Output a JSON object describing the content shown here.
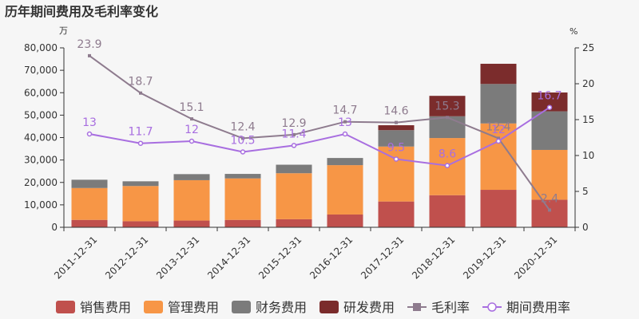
{
  "chart_data": {
    "type": "bar",
    "title": "历年期间费用及毛利率变化",
    "left_unit": "万",
    "right_unit": "%",
    "categories": [
      "2011-12-31",
      "2012-12-31",
      "2013-12-31",
      "2014-12-31",
      "2015-12-31",
      "2016-12-31",
      "2017-12-31",
      "2018-12-31",
      "2019-12-31",
      "2020-12-31"
    ],
    "ylim_left": [
      0,
      80000
    ],
    "ylim_right": [
      0,
      25
    ],
    "yticks_left": [
      "0",
      "10,000",
      "20,000",
      "30,000",
      "40,000",
      "50,000",
      "60,000",
      "70,000",
      "80,000"
    ],
    "yticks_right": [
      "0",
      "5",
      "10",
      "15",
      "20",
      "25"
    ],
    "grid": false,
    "legend_position": "bottom",
    "bar_series": [
      {
        "name": "销售费用",
        "color": "#c0504d",
        "values": [
          3300,
          2700,
          3000,
          3300,
          3600,
          5700,
          11500,
          14300,
          16700,
          12300
        ]
      },
      {
        "name": "管理费用",
        "color": "#f79646",
        "values": [
          14200,
          15700,
          18000,
          18500,
          20500,
          22000,
          24500,
          25500,
          29600,
          22200
        ]
      },
      {
        "name": "财务费用",
        "color": "#7b7b7b",
        "values": [
          3700,
          2100,
          2700,
          2000,
          3800,
          3200,
          7300,
          9700,
          17600,
          17200
        ]
      },
      {
        "name": "研发费用",
        "color": "#7b2c2c",
        "values": [
          0,
          0,
          0,
          0,
          0,
          0,
          2200,
          9100,
          9000,
          8400
        ]
      }
    ],
    "line_series": [
      {
        "name": "毛利率",
        "color": "#8e7b8e",
        "marker": "square",
        "values": [
          23.9,
          18.7,
          15.1,
          12.4,
          12.9,
          14.7,
          14.6,
          15.3,
          12.4,
          2.4
        ],
        "labels": [
          "23.9",
          "18.7",
          "15.1",
          "12.4",
          "12.9",
          "14.7",
          "14.6",
          "15.3",
          "12.4",
          "2.4"
        ]
      },
      {
        "name": "期间费用率",
        "color": "#a86ee0",
        "marker": "circle",
        "values": [
          13,
          11.7,
          12,
          10.5,
          11.4,
          13,
          9.5,
          8.6,
          12,
          16.7
        ],
        "labels": [
          "13",
          "11.7",
          "12",
          "10.5",
          "11.4",
          "13",
          "9.5",
          "8.6",
          "12",
          "16.7"
        ]
      }
    ]
  }
}
